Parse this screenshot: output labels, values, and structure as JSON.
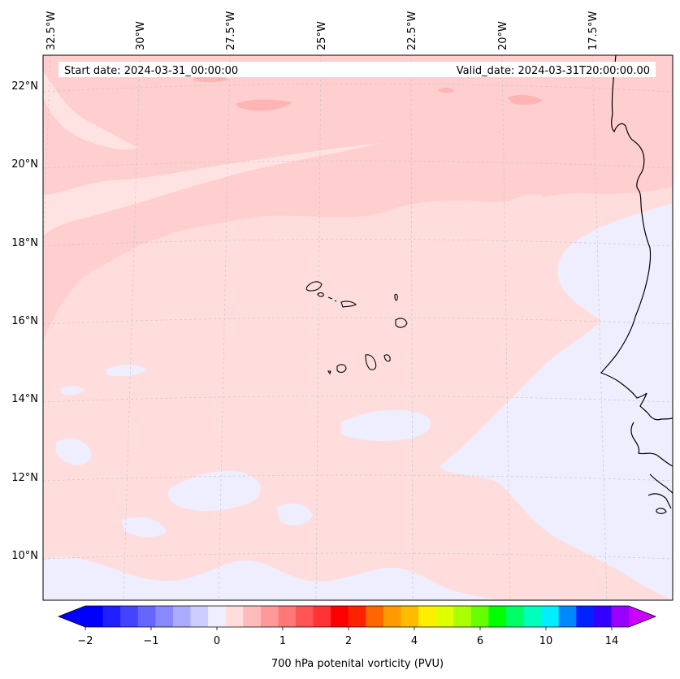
{
  "map": {
    "start_date": "Start date: 2024-03-31_00:00:00",
    "valid_date": "Valid_date: 2024-03-31T20:00:00.00",
    "lon_labels": [
      "32.5°W",
      "30°W",
      "27.5°W",
      "25°W",
      "22.5°W",
      "20°W",
      "17.5°W"
    ],
    "lat_labels": [
      "22°N",
      "20°N",
      "18°N",
      "16°N",
      "14°N",
      "12°N",
      "10°N"
    ],
    "field_colors": {
      "light_pink": "#ffdddd",
      "pink": "#ffcece",
      "rose": "#ffb4b4",
      "lavender": "#eeeeff"
    }
  },
  "colorbar": {
    "label": "700 hPa potenital vorticity (PVU)",
    "tick_labels": [
      "−2",
      "−1",
      "0",
      "1",
      "2",
      "4",
      "6",
      "10",
      "14"
    ],
    "colors": [
      "#0000ff",
      "#2020ff",
      "#4444ff",
      "#6666ff",
      "#8888ff",
      "#aaaaff",
      "#ccccff",
      "#eeeeff",
      "#ffdddd",
      "#ffbbbb",
      "#ff9999",
      "#ff7777",
      "#ff5555",
      "#ff3333",
      "#ff0000",
      "#ff2200",
      "#ff6600",
      "#ff9900",
      "#ffbb00",
      "#ffee00",
      "#ddff00",
      "#aaff00",
      "#66ff00",
      "#00ff00",
      "#00ff66",
      "#00ffbb",
      "#00eeff",
      "#0088ff",
      "#0022ff",
      "#3300ff",
      "#9900ff"
    ],
    "extend_low_color": "#0000ff",
    "extend_high_color": "#cc00ff"
  }
}
